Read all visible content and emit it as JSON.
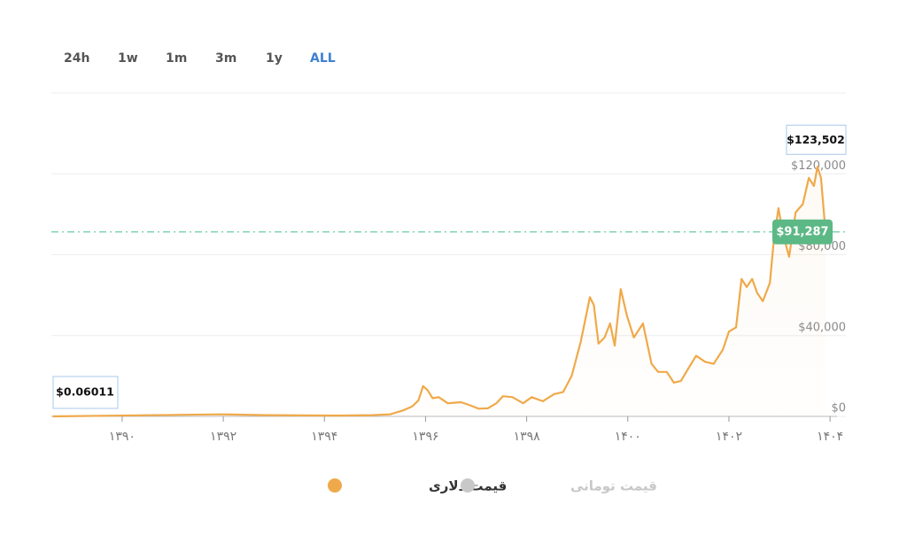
{
  "time_ranges": [
    "24h",
    "1w",
    "1m",
    "3m",
    "1y",
    "ALL"
  ],
  "active_range": 5,
  "chart_data": {
    "type": "line",
    "x": [
      1388.63,
      1391.96,
      1392.84,
      1394.25,
      1394.95,
      1395.3,
      1395.56,
      1395.74,
      1395.86,
      1395.95,
      1396.04,
      1396.14,
      1396.26,
      1396.44,
      1396.7,
      1396.88,
      1397.05,
      1397.23,
      1397.4,
      1397.53,
      1397.72,
      1397.93,
      1398.1,
      1398.32,
      1398.54,
      1398.72,
      1398.89,
      1399.07,
      1399.25,
      1399.33,
      1399.42,
      1399.54,
      1399.65,
      1399.74,
      1399.86,
      1399.98,
      1400.12,
      1400.3,
      1400.47,
      1400.6,
      1400.77,
      1400.91,
      1401.05,
      1401.18,
      1401.35,
      1401.53,
      1401.7,
      1401.88,
      1402.0,
      1402.14,
      1402.25,
      1402.35,
      1402.46,
      1402.56,
      1402.67,
      1402.81,
      1402.89,
      1402.98,
      1403.07,
      1403.19,
      1403.32,
      1403.46,
      1403.58,
      1403.68,
      1403.75,
      1403.82,
      1403.91
    ],
    "series": [
      {
        "name": "قیمت دلاری",
        "color": "#f0a94a",
        "values": [
          0.06011,
          1000,
          600,
          400,
          600,
          1000,
          3000,
          5000,
          8000,
          15000,
          13000,
          9000,
          9500,
          6500,
          7000,
          5500,
          3800,
          4000,
          6500,
          10000,
          9500,
          6500,
          9500,
          7500,
          11000,
          12000,
          20000,
          37000,
          59000,
          55000,
          36000,
          39000,
          46000,
          35000,
          63000,
          50000,
          39000,
          46000,
          26000,
          22000,
          22000,
          16700,
          17500,
          23000,
          30000,
          27000,
          26000,
          33000,
          42000,
          44000,
          68000,
          64000,
          68000,
          61000,
          57000,
          66000,
          88000,
          103000,
          90000,
          79000,
          101000,
          105000,
          118000,
          114000,
          123502,
          118000,
          91287
        ]
      }
    ],
    "inactive_series": [
      {
        "name": "قیمت تومانی",
        "color": "#c8c8c8"
      }
    ],
    "xlim": [
      1388.6,
      1404.05
    ],
    "xticks": [
      {
        "value": 1390,
        "label": "۱۳۹۰"
      },
      {
        "value": 1392,
        "label": "۱۳۹۲"
      },
      {
        "value": 1394,
        "label": "۱۳۹۴"
      },
      {
        "value": 1396,
        "label": "۱۳۹۶"
      },
      {
        "value": 1398,
        "label": "۱۳۹۸"
      },
      {
        "value": 1400,
        "label": "۱۴۰۰"
      },
      {
        "value": 1402,
        "label": "۱۴۰۲"
      },
      {
        "value": 1404,
        "label": "۱۴۰۴"
      }
    ],
    "ylim": [
      0,
      160000
    ],
    "yticks": [
      {
        "value": 0,
        "label": "$0"
      },
      {
        "value": 40000,
        "label": "$40,000"
      },
      {
        "value": 80000,
        "label": "$80,000"
      },
      {
        "value": 120000,
        "label": "$120,000"
      }
    ],
    "grid": true,
    "max_label": {
      "value": 123502,
      "label": "$123,502"
    },
    "min_label": {
      "value": 0.06011,
      "label": "$0.06011"
    },
    "current_price": {
      "value": 91287,
      "label": "$91,287",
      "color": "#5cb885"
    }
  }
}
